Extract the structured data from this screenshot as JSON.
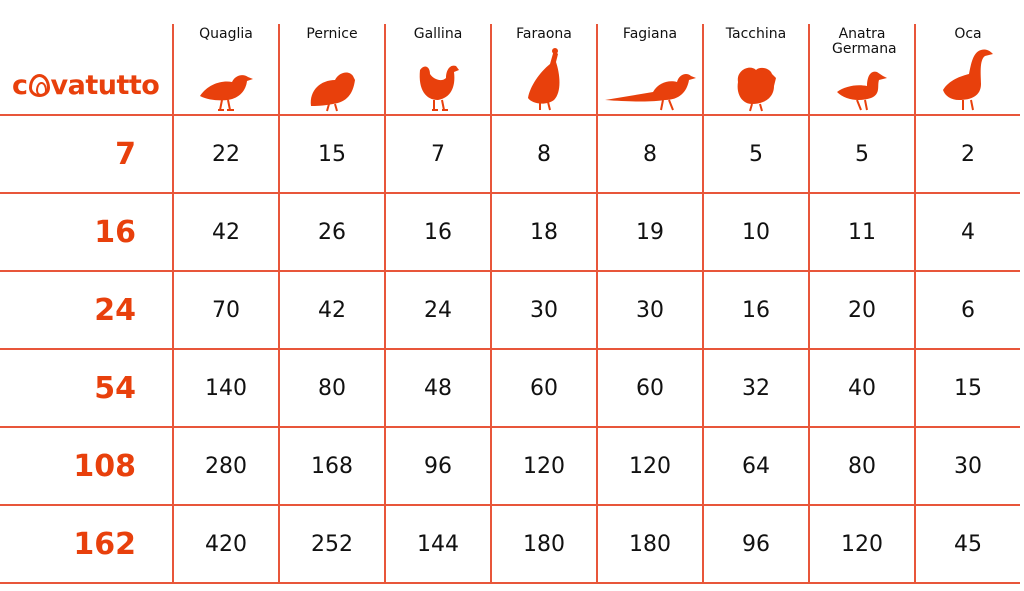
{
  "brand": {
    "logo_text": "covatutto",
    "color": "#e8400c"
  },
  "columns": [
    {
      "label": "Quaglia",
      "icon": "quail-icon"
    },
    {
      "label": "Pernice",
      "icon": "partridge-icon"
    },
    {
      "label": "Gallina",
      "icon": "hen-icon"
    },
    {
      "label": "Faraona",
      "icon": "guinea-fowl-icon"
    },
    {
      "label": "Fagiana",
      "icon": "pheasant-icon"
    },
    {
      "label": "Tacchina",
      "icon": "turkey-icon"
    },
    {
      "label": "Anatra Germana",
      "icon": "duck-icon"
    },
    {
      "label": "Oca",
      "icon": "goose-icon"
    }
  ],
  "rows": [
    {
      "model": "7",
      "values": [
        "22",
        "15",
        "7",
        "8",
        "8",
        "5",
        "5",
        "2"
      ]
    },
    {
      "model": "16",
      "values": [
        "42",
        "26",
        "16",
        "18",
        "19",
        "10",
        "11",
        "4"
      ]
    },
    {
      "model": "24",
      "values": [
        "70",
        "42",
        "24",
        "30",
        "30",
        "16",
        "20",
        "6"
      ]
    },
    {
      "model": "54",
      "values": [
        "140",
        "80",
        "48",
        "60",
        "60",
        "32",
        "40",
        "15"
      ]
    },
    {
      "model": "108",
      "values": [
        "280",
        "168",
        "96",
        "120",
        "120",
        "64",
        "80",
        "30"
      ]
    },
    {
      "model": "162",
      "values": [
        "420",
        "252",
        "144",
        "180",
        "180",
        "96",
        "120",
        "45"
      ]
    }
  ]
}
